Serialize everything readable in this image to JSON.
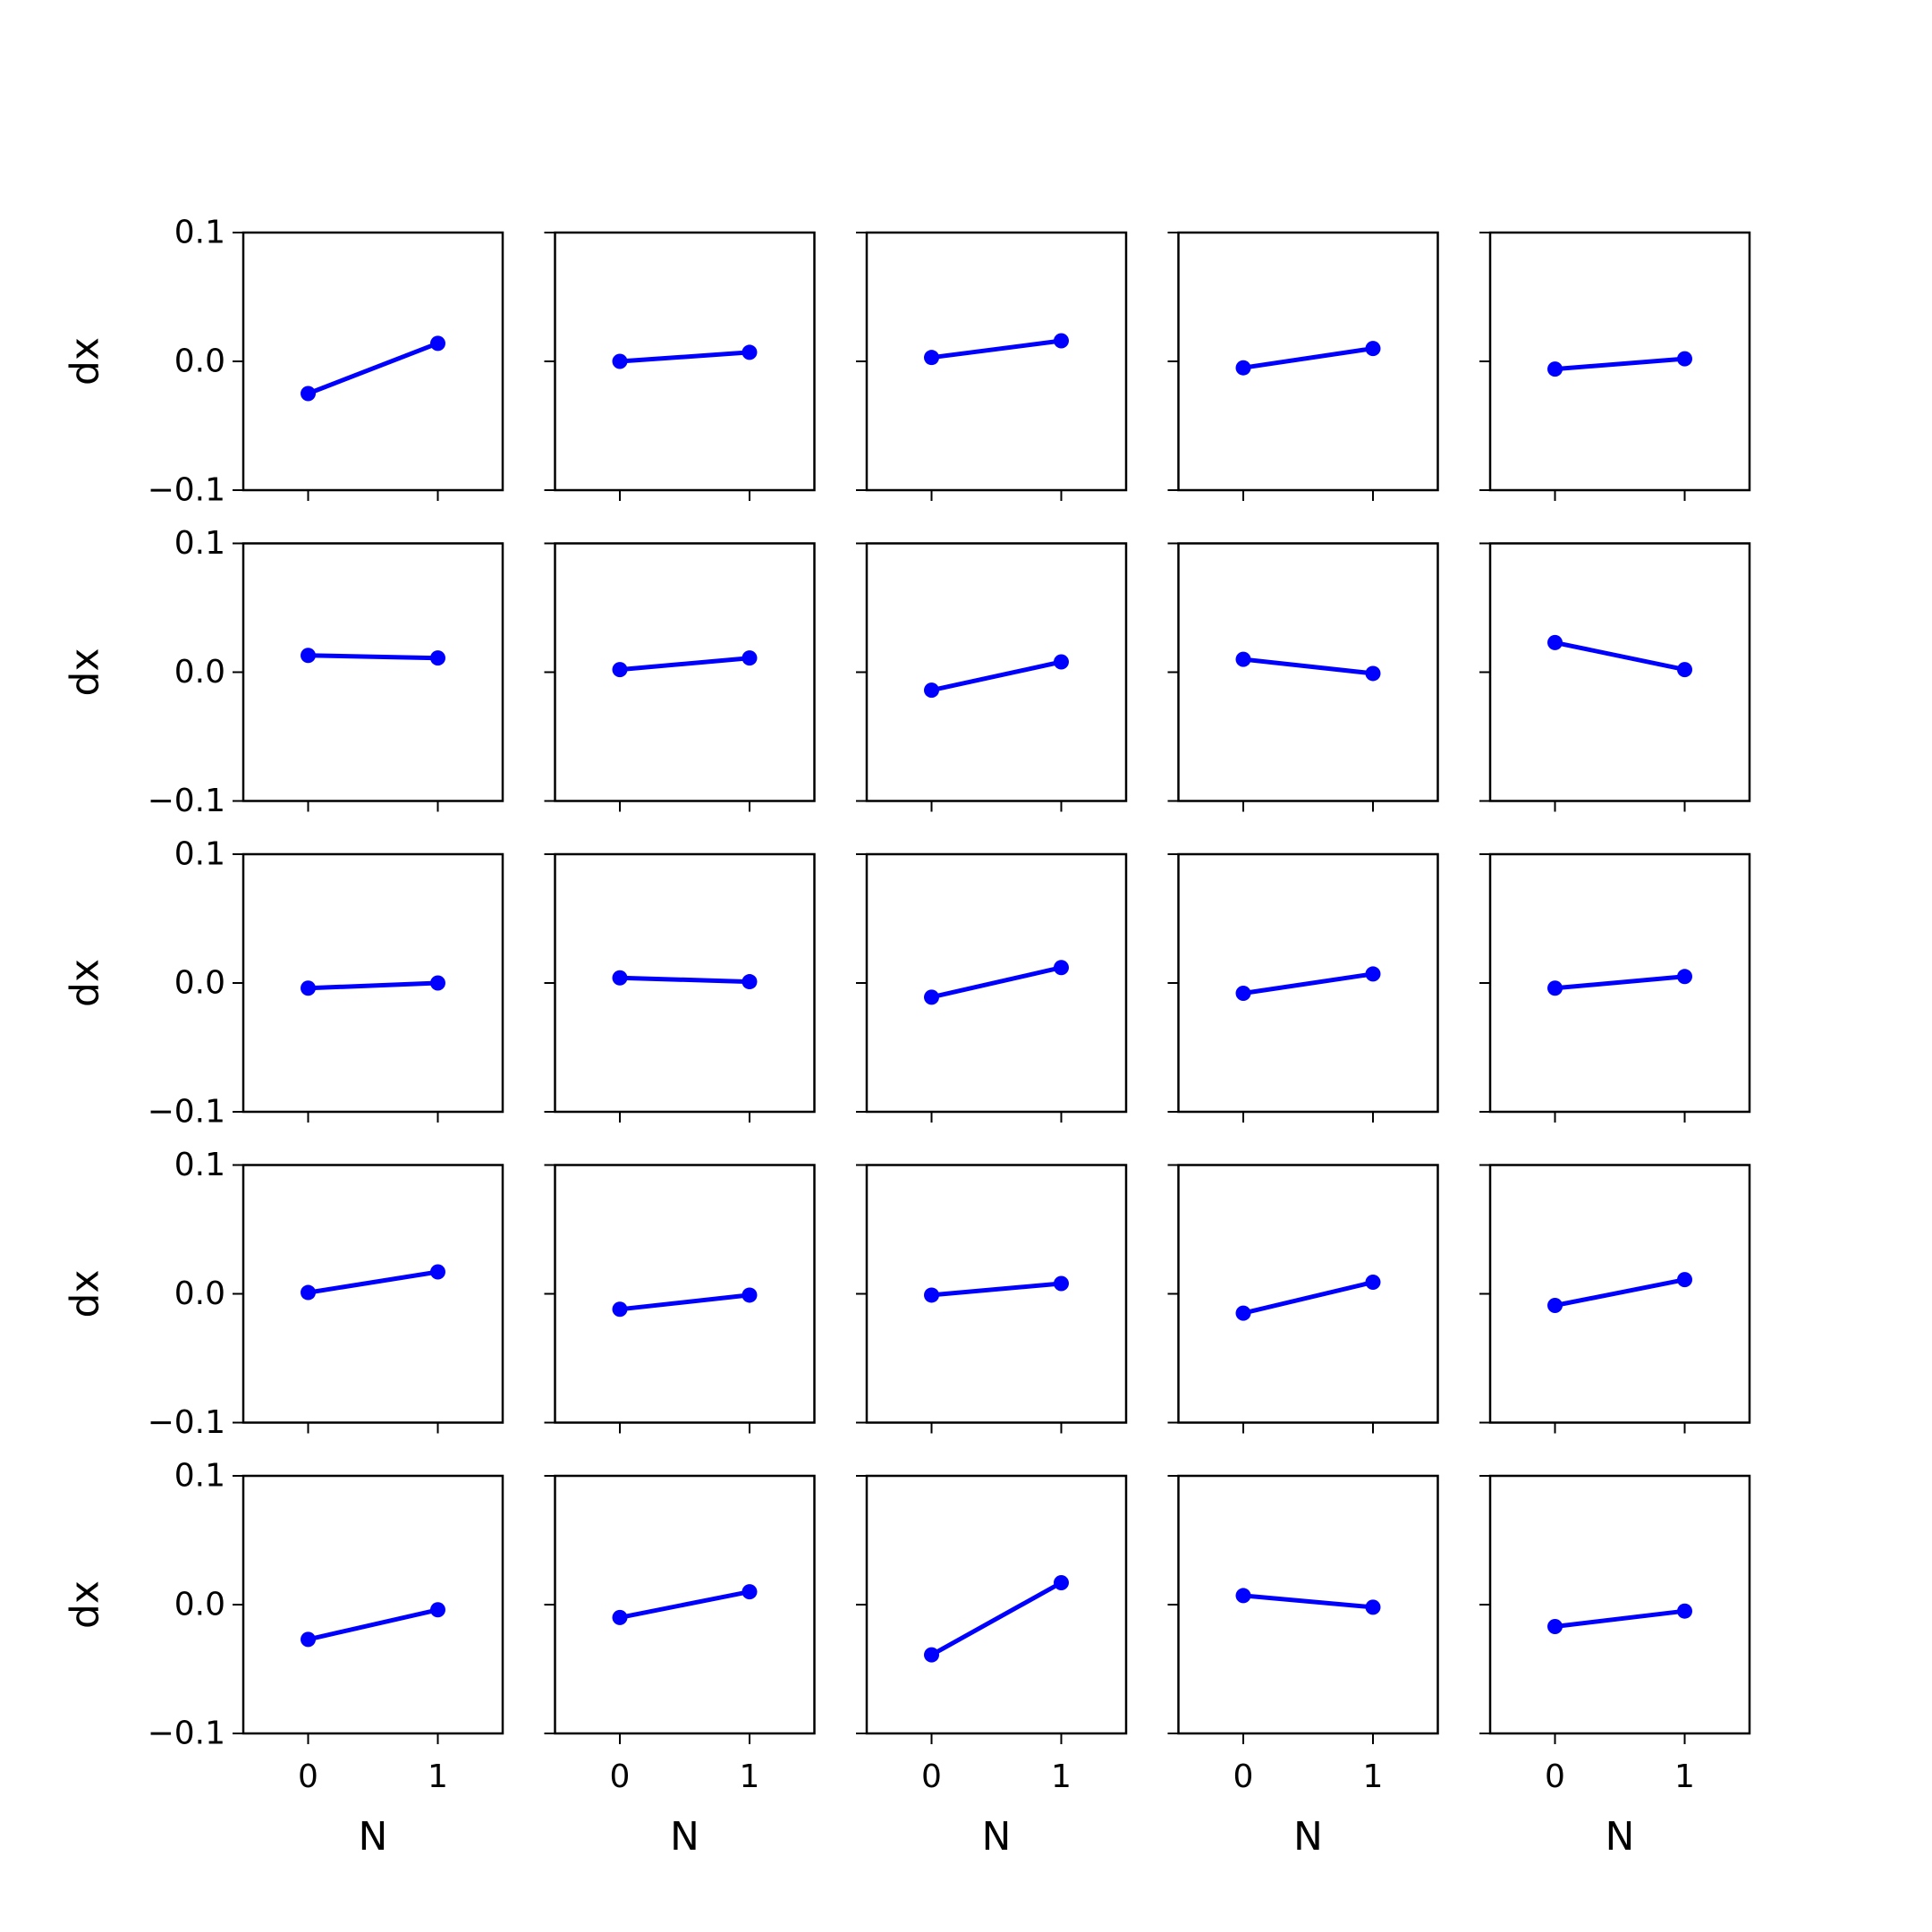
{
  "chart_data": {
    "type": "line",
    "layout": {
      "rows": 5,
      "cols": 5
    },
    "shared": {
      "xticks": [
        0,
        1
      ],
      "xtick_labels": [
        "0",
        "1"
      ],
      "xlim": [
        -0.5,
        1.5
      ],
      "yticks": [
        -0.1,
        0.0,
        0.1
      ],
      "ytick_labels": [
        "−0.1",
        "0.0",
        "0.1"
      ],
      "ylim": [
        -0.1,
        0.1
      ],
      "xlabel": "N",
      "ylabel": "dx",
      "marker": "circle",
      "color": "#0000ff",
      "grid": false
    },
    "panels": [
      {
        "x": [
          0,
          1
        ],
        "y": [
          -0.025,
          0.014
        ]
      },
      {
        "x": [
          0,
          1
        ],
        "y": [
          0.0,
          0.007
        ]
      },
      {
        "x": [
          0,
          1
        ],
        "y": [
          0.003,
          0.016
        ]
      },
      {
        "x": [
          0,
          1
        ],
        "y": [
          -0.005,
          0.01
        ]
      },
      {
        "x": [
          0,
          1
        ],
        "y": [
          -0.006,
          0.002
        ]
      },
      {
        "x": [
          0,
          1
        ],
        "y": [
          0.013,
          0.011
        ]
      },
      {
        "x": [
          0,
          1
        ],
        "y": [
          0.002,
          0.011
        ]
      },
      {
        "x": [
          0,
          1
        ],
        "y": [
          -0.014,
          0.008
        ]
      },
      {
        "x": [
          0,
          1
        ],
        "y": [
          0.01,
          -0.001
        ]
      },
      {
        "x": [
          0,
          1
        ],
        "y": [
          0.023,
          0.002
        ]
      },
      {
        "x": [
          0,
          1
        ],
        "y": [
          -0.004,
          0.0
        ]
      },
      {
        "x": [
          0,
          1
        ],
        "y": [
          0.004,
          0.001
        ]
      },
      {
        "x": [
          0,
          1
        ],
        "y": [
          -0.011,
          0.012
        ]
      },
      {
        "x": [
          0,
          1
        ],
        "y": [
          -0.008,
          0.007
        ]
      },
      {
        "x": [
          0,
          1
        ],
        "y": [
          -0.004,
          0.005
        ]
      },
      {
        "x": [
          0,
          1
        ],
        "y": [
          0.001,
          0.017
        ]
      },
      {
        "x": [
          0,
          1
        ],
        "y": [
          -0.012,
          -0.001
        ]
      },
      {
        "x": [
          0,
          1
        ],
        "y": [
          -0.001,
          0.008
        ]
      },
      {
        "x": [
          0,
          1
        ],
        "y": [
          -0.015,
          0.009
        ]
      },
      {
        "x": [
          0,
          1
        ],
        "y": [
          -0.009,
          0.011
        ]
      },
      {
        "x": [
          0,
          1
        ],
        "y": [
          -0.027,
          -0.004
        ]
      },
      {
        "x": [
          0,
          1
        ],
        "y": [
          -0.01,
          0.01
        ]
      },
      {
        "x": [
          0,
          1
        ],
        "y": [
          -0.039,
          0.017
        ]
      },
      {
        "x": [
          0,
          1
        ],
        "y": [
          0.007,
          -0.002
        ]
      },
      {
        "x": [
          0,
          1
        ],
        "y": [
          -0.017,
          -0.005
        ]
      }
    ]
  }
}
